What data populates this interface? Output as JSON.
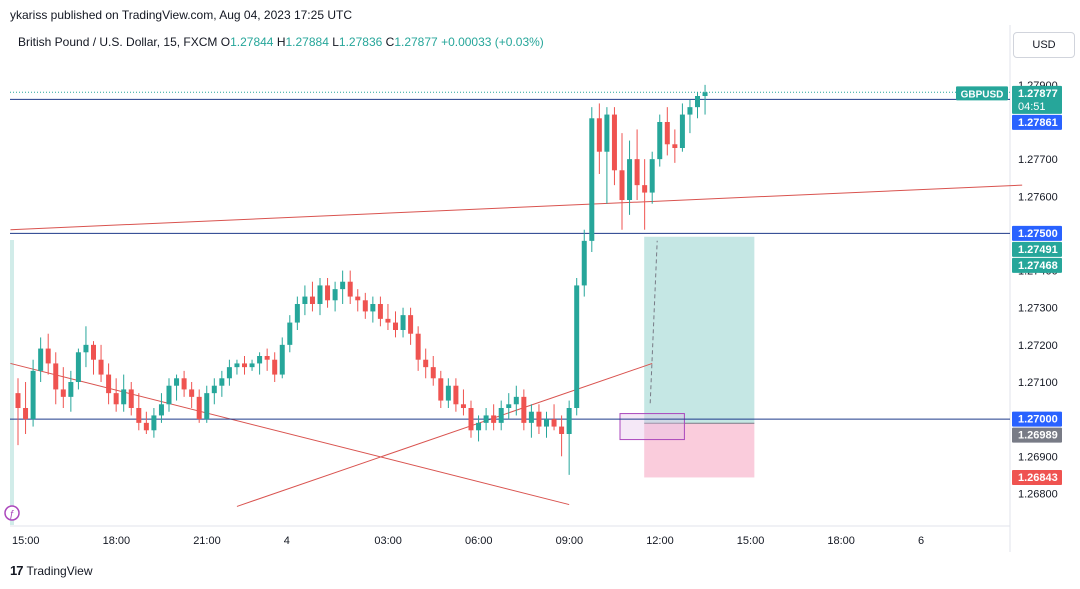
{
  "header": {
    "publisher": "ykariss published on TradingView.com, Aug 04, 2023 17:25 UTC",
    "instrument": "British Pound / U.S. Dollar, 15, FXCM",
    "o_label": "O",
    "o_value": "1.27844",
    "h_label": "H",
    "h_value": "1.27884",
    "l_label": "L",
    "l_value": "1.27836",
    "c_label": "C",
    "c_value": "1.27877",
    "change": "+0.00033 (+0.03%)"
  },
  "currency_button": "USD",
  "footer": {
    "brand": "TradingView",
    "logo_glyph": "17"
  },
  "colors": {
    "up": "#26a69a",
    "down": "#ef5350",
    "hline": "#1e3a8a",
    "trend": "#d9534f",
    "profit": "#b2dfdb",
    "loss": "#f8bbd0",
    "zone": "#ab47bc",
    "blue_tag": "#2962ff"
  },
  "chart_data": {
    "type": "candlestick",
    "title": "British Pound / U.S. Dollar, 15, FXCM",
    "ylim": [
      1.2675,
      1.2794
    ],
    "y_ticks": [
      "1.27900",
      "1.27800",
      "1.27700",
      "1.27600",
      "1.27500",
      "1.27400",
      "1.27300",
      "1.27200",
      "1.27100",
      "1.27000",
      "1.26900",
      "1.26800"
    ],
    "x_ticks": [
      {
        "label": "15:00",
        "at": 0
      },
      {
        "label": "18:00",
        "at": 12
      },
      {
        "label": "21:00",
        "at": 24
      },
      {
        "label": "4",
        "at": 36
      },
      {
        "label": "03:00",
        "at": 48
      },
      {
        "label": "06:00",
        "at": 60
      },
      {
        "label": "09:00",
        "at": 72
      },
      {
        "label": "12:00",
        "at": 84
      },
      {
        "label": "15:00",
        "at": 96
      },
      {
        "label": "18:00",
        "at": 108
      },
      {
        "label": "6",
        "at": 120
      }
    ],
    "ohlc": [
      [
        1.2707,
        1.2711,
        1.2693,
        1.2703
      ],
      [
        1.2703,
        1.271,
        1.2696,
        1.27
      ],
      [
        1.27,
        1.2716,
        1.2698,
        1.2713
      ],
      [
        1.2713,
        1.2722,
        1.271,
        1.2719
      ],
      [
        1.2719,
        1.2723,
        1.2712,
        1.2715
      ],
      [
        1.2715,
        1.2718,
        1.2704,
        1.2708
      ],
      [
        1.2708,
        1.2714,
        1.2703,
        1.2706
      ],
      [
        1.2706,
        1.2713,
        1.2702,
        1.271
      ],
      [
        1.271,
        1.2719,
        1.2708,
        1.2718
      ],
      [
        1.2718,
        1.2725,
        1.2714,
        1.272
      ],
      [
        1.272,
        1.2721,
        1.2712,
        1.2716
      ],
      [
        1.2716,
        1.272,
        1.271,
        1.2712
      ],
      [
        1.2712,
        1.2715,
        1.2704,
        1.2707
      ],
      [
        1.2707,
        1.2711,
        1.2702,
        1.2704
      ],
      [
        1.2704,
        1.2712,
        1.2702,
        1.2708
      ],
      [
        1.2708,
        1.271,
        1.2701,
        1.2703
      ],
      [
        1.2703,
        1.2707,
        1.2697,
        1.2699
      ],
      [
        1.2699,
        1.2702,
        1.2696,
        1.2697
      ],
      [
        1.2697,
        1.2703,
        1.2695,
        1.2701
      ],
      [
        1.2701,
        1.2707,
        1.2699,
        1.2704
      ],
      [
        1.2704,
        1.2711,
        1.2702,
        1.2709
      ],
      [
        1.2709,
        1.2712,
        1.2705,
        1.2711
      ],
      [
        1.2711,
        1.2713,
        1.2706,
        1.2708
      ],
      [
        1.2708,
        1.271,
        1.2703,
        1.2706
      ],
      [
        1.2706,
        1.2708,
        1.2699,
        1.27
      ],
      [
        1.27,
        1.2709,
        1.2699,
        1.2707
      ],
      [
        1.2707,
        1.2711,
        1.2704,
        1.2709
      ],
      [
        1.2709,
        1.2713,
        1.2706,
        1.2711
      ],
      [
        1.2711,
        1.2716,
        1.2709,
        1.2714
      ],
      [
        1.2714,
        1.2716,
        1.2712,
        1.2715
      ],
      [
        1.2715,
        1.2717,
        1.2712,
        1.2714
      ],
      [
        1.2714,
        1.2716,
        1.2713,
        1.2715
      ],
      [
        1.2715,
        1.2718,
        1.2712,
        1.2717
      ],
      [
        1.2717,
        1.2719,
        1.2713,
        1.2716
      ],
      [
        1.2716,
        1.2718,
        1.271,
        1.2712
      ],
      [
        1.2712,
        1.2722,
        1.2711,
        1.272
      ],
      [
        1.272,
        1.2728,
        1.2718,
        1.2726
      ],
      [
        1.2726,
        1.2733,
        1.2724,
        1.2731
      ],
      [
        1.2731,
        1.2736,
        1.2728,
        1.2733
      ],
      [
        1.2733,
        1.2737,
        1.2729,
        1.2731
      ],
      [
        1.2731,
        1.2738,
        1.2728,
        1.2736
      ],
      [
        1.2736,
        1.2738,
        1.273,
        1.2732
      ],
      [
        1.2732,
        1.2737,
        1.2729,
        1.2735
      ],
      [
        1.2735,
        1.274,
        1.2731,
        1.2737
      ],
      [
        1.2737,
        1.274,
        1.2731,
        1.2733
      ],
      [
        1.2733,
        1.2735,
        1.2729,
        1.2732
      ],
      [
        1.2732,
        1.2734,
        1.2727,
        1.2729
      ],
      [
        1.2729,
        1.2733,
        1.2726,
        1.2731
      ],
      [
        1.2731,
        1.2733,
        1.2725,
        1.2727
      ],
      [
        1.2727,
        1.2731,
        1.2724,
        1.2726
      ],
      [
        1.2726,
        1.2729,
        1.2722,
        1.2724
      ],
      [
        1.2724,
        1.273,
        1.2722,
        1.2728
      ],
      [
        1.2728,
        1.273,
        1.272,
        1.2723
      ],
      [
        1.2723,
        1.2725,
        1.2713,
        1.2716
      ],
      [
        1.2716,
        1.2719,
        1.2711,
        1.2714
      ],
      [
        1.2714,
        1.2717,
        1.2709,
        1.2711
      ],
      [
        1.2711,
        1.2713,
        1.2703,
        1.2705
      ],
      [
        1.2705,
        1.2711,
        1.2703,
        1.2709
      ],
      [
        1.2709,
        1.2711,
        1.2702,
        1.2704
      ],
      [
        1.2704,
        1.2708,
        1.2701,
        1.2703
      ],
      [
        1.2703,
        1.2705,
        1.2695,
        1.2697
      ],
      [
        1.2697,
        1.2701,
        1.2694,
        1.2699
      ],
      [
        1.2699,
        1.2703,
        1.2697,
        1.2701
      ],
      [
        1.2701,
        1.2704,
        1.2697,
        1.2699
      ],
      [
        1.2699,
        1.2705,
        1.2697,
        1.2703
      ],
      [
        1.2703,
        1.2707,
        1.27,
        1.2704
      ],
      [
        1.2704,
        1.2709,
        1.2701,
        1.2706
      ],
      [
        1.2706,
        1.2708,
        1.2697,
        1.2699
      ],
      [
        1.2699,
        1.2704,
        1.2695,
        1.2702
      ],
      [
        1.2702,
        1.2704,
        1.2696,
        1.2698
      ],
      [
        1.2698,
        1.2702,
        1.2695,
        1.27
      ],
      [
        1.27,
        1.2704,
        1.2697,
        1.2698
      ],
      [
        1.2698,
        1.2701,
        1.269,
        1.2696
      ],
      [
        1.2696,
        1.2705,
        1.2685,
        1.2703
      ],
      [
        1.2703,
        1.2738,
        1.2701,
        1.2736
      ],
      [
        1.2736,
        1.2751,
        1.2733,
        1.2748
      ],
      [
        1.2748,
        1.2784,
        1.2745,
        1.2781
      ],
      [
        1.2781,
        1.2785,
        1.2766,
        1.2772
      ],
      [
        1.2772,
        1.2784,
        1.2758,
        1.2782
      ],
      [
        1.2782,
        1.2784,
        1.2763,
        1.2767
      ],
      [
        1.2767,
        1.2777,
        1.2751,
        1.2759
      ],
      [
        1.2759,
        1.2775,
        1.2755,
        1.277
      ],
      [
        1.277,
        1.2778,
        1.2759,
        1.2763
      ],
      [
        1.2763,
        1.277,
        1.2751,
        1.2761
      ],
      [
        1.2761,
        1.2772,
        1.2758,
        1.277
      ],
      [
        1.277,
        1.2782,
        1.2768,
        1.278
      ],
      [
        1.278,
        1.2784,
        1.2771,
        1.2774
      ],
      [
        1.2774,
        1.2778,
        1.2769,
        1.2773
      ],
      [
        1.2773,
        1.2785,
        1.2772,
        1.2782
      ],
      [
        1.2782,
        1.2786,
        1.2777,
        1.2784
      ],
      [
        1.2784,
        1.2788,
        1.2781,
        1.2787
      ],
      [
        1.2787,
        1.279,
        1.2782,
        1.2788
      ]
    ],
    "horizontal_lines": [
      1.27861,
      1.275,
      1.27
    ],
    "trendlines": [
      {
        "from": [
          -1,
          1.2751
        ],
        "to": [
          133,
          1.2763
        ]
      },
      {
        "from": [
          -1,
          1.2715
        ],
        "to": [
          73,
          1.2677
        ]
      },
      {
        "from": [
          29,
          1.26765
        ],
        "to": [
          84,
          1.2715
        ]
      }
    ],
    "position": {
      "start": 84,
      "end": 97,
      "entry": 1.26989,
      "target": 1.27491,
      "stop": 1.26843
    },
    "zone": {
      "start": 80,
      "end": 88,
      "top": 1.27015,
      "bottom": 1.26945
    },
    "price_tags": [
      {
        "text": "1.27877",
        "sub": "04:51",
        "value": 1.27877,
        "color": "#26a69a"
      },
      {
        "text": "1.27861",
        "value": 1.27861,
        "color": "#2962ff"
      },
      {
        "text": "1.27500",
        "value": 1.275,
        "color": "#2962ff"
      },
      {
        "text": "1.27491",
        "value": 1.27491,
        "color": "#26a69a"
      },
      {
        "text": "1.27468",
        "value": 1.27468,
        "color": "#26a69a"
      },
      {
        "text": "1.27000",
        "value": 1.27,
        "color": "#2962ff"
      },
      {
        "text": "1.26989",
        "value": 1.26989,
        "color": "#787b86"
      },
      {
        "text": "1.26843",
        "value": 1.26843,
        "color": "#ef5350"
      }
    ],
    "symbol_tag": "GBPUSD"
  }
}
